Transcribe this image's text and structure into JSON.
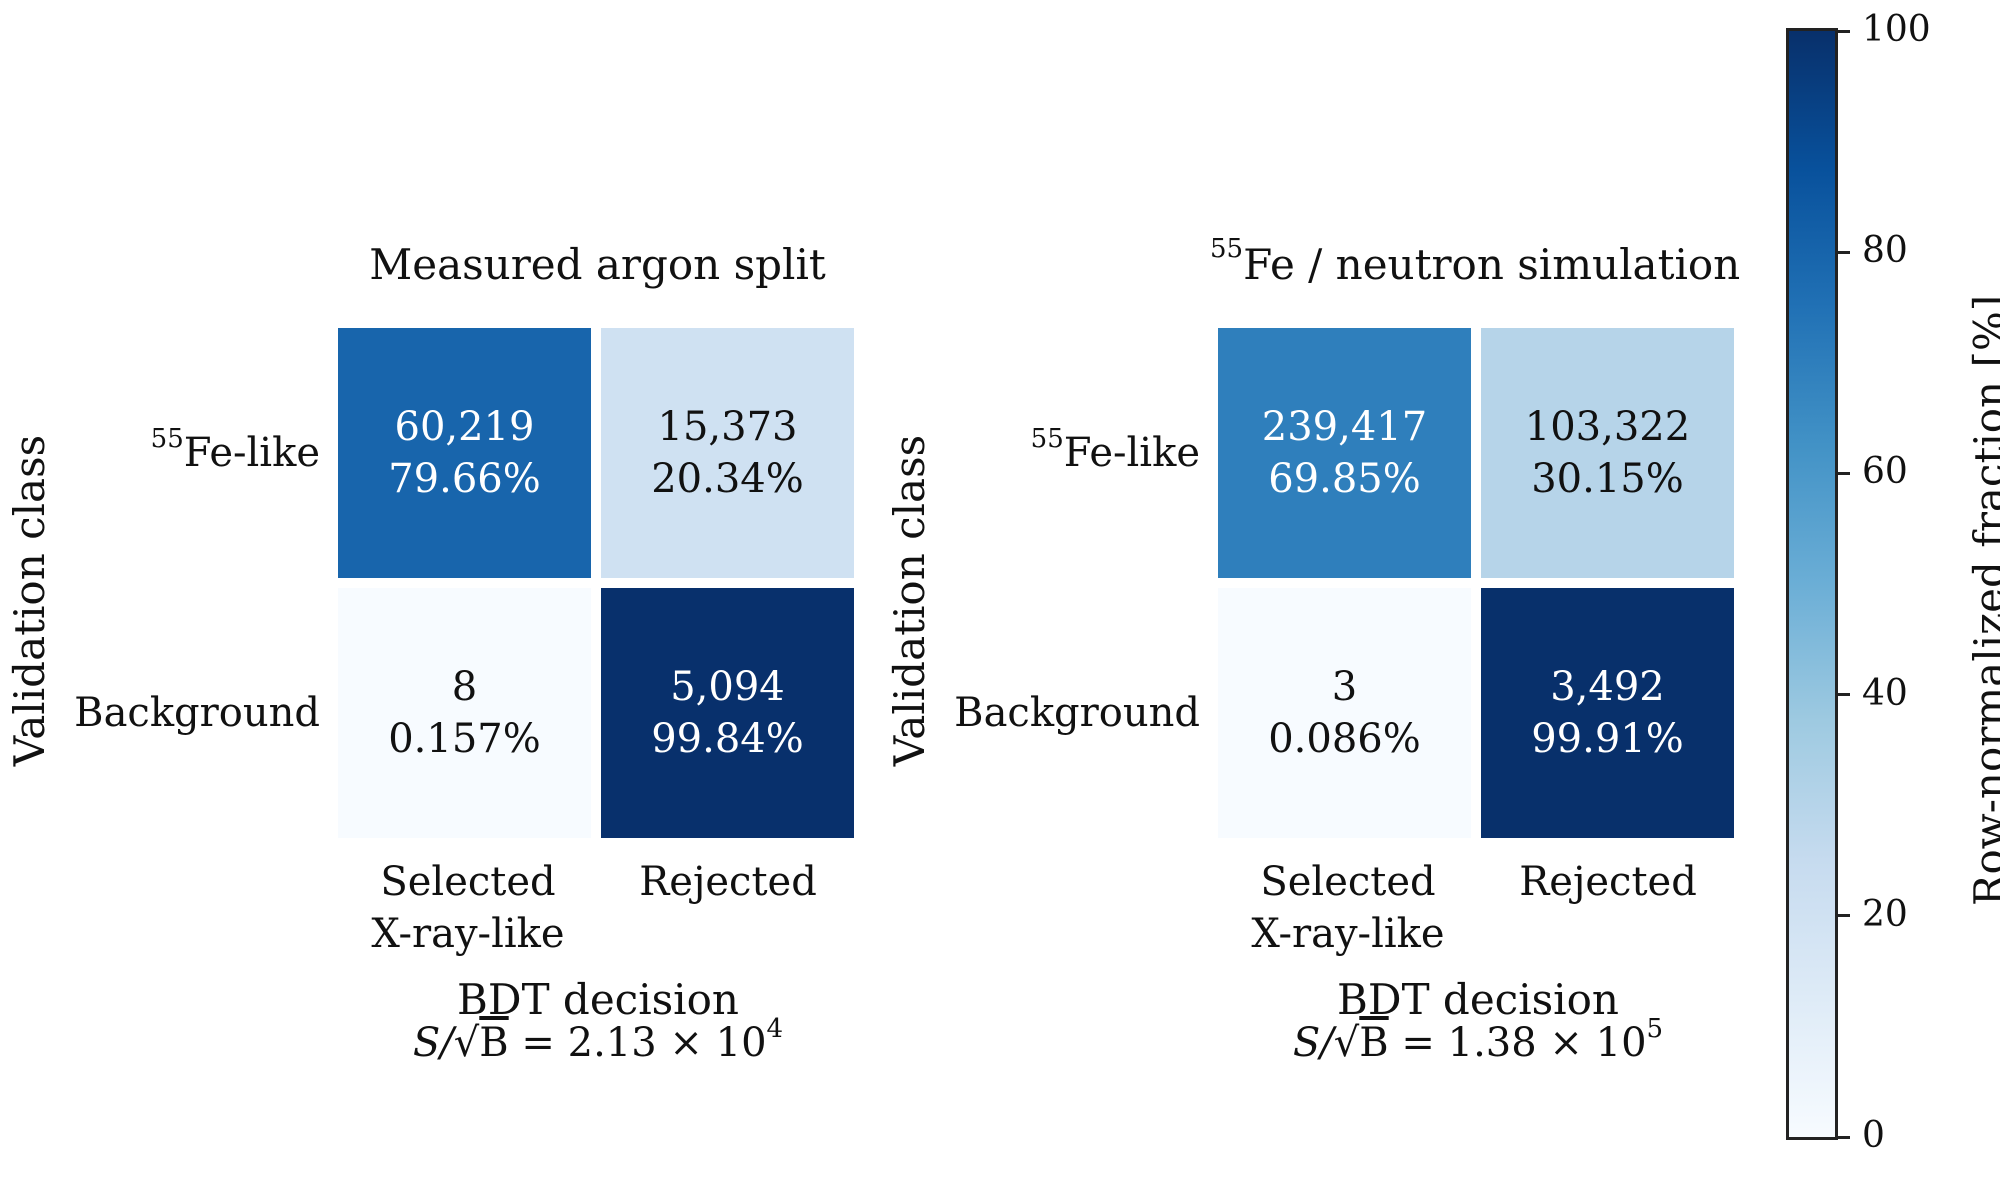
{
  "chart_data": [
    {
      "type": "heatmap",
      "title": "Measured argon split",
      "title_prefix_sup": "",
      "ylabel": "Validation class",
      "xlabel": "BDT decision",
      "metric": {
        "lhs": "S/",
        "root": "B",
        "eq": " = 2.13 × 10",
        "exp": "4"
      },
      "rows": [
        {
          "sup": "55",
          "label": "Fe-like"
        },
        {
          "sup": "",
          "label": "Background"
        }
      ],
      "cols": [
        {
          "line1": "Selected",
          "line2": "X-ray-like"
        },
        {
          "line1": "Rejected",
          "line2": ""
        }
      ],
      "cells": [
        [
          {
            "count": "60,219",
            "pct": "79.66%",
            "value": 79.66
          },
          {
            "count": "15,373",
            "pct": "20.34%",
            "value": 20.34
          }
        ],
        [
          {
            "count": "8",
            "pct": "0.157%",
            "value": 0.157
          },
          {
            "count": "5,094",
            "pct": "99.84%",
            "value": 99.84
          }
        ]
      ]
    },
    {
      "type": "heatmap",
      "title": "Fe / neutron simulation",
      "title_prefix_sup": "55",
      "ylabel": "Validation class",
      "xlabel": "BDT decision",
      "metric": {
        "lhs": "S/",
        "root": "B",
        "eq": " = 1.38 × 10",
        "exp": "5"
      },
      "rows": [
        {
          "sup": "55",
          "label": "Fe-like"
        },
        {
          "sup": "",
          "label": "Background"
        }
      ],
      "cols": [
        {
          "line1": "Selected",
          "line2": "X-ray-like"
        },
        {
          "line1": "Rejected",
          "line2": ""
        }
      ],
      "cells": [
        [
          {
            "count": "239,417",
            "pct": "69.85%",
            "value": 69.85
          },
          {
            "count": "103,322",
            "pct": "30.15%",
            "value": 30.15
          }
        ],
        [
          {
            "count": "3",
            "pct": "0.086%",
            "value": 0.086
          },
          {
            "count": "3,492",
            "pct": "99.91%",
            "value": 99.91
          }
        ]
      ]
    }
  ],
  "colorbar": {
    "label": "Row-normalized fraction [%]",
    "range": [
      0,
      100
    ],
    "ticks": [
      "0",
      "20",
      "40",
      "60",
      "80",
      "100"
    ],
    "colormap": "Blues",
    "colors": [
      "#f7fbff",
      "#deebf7",
      "#c6dbef",
      "#9ecae1",
      "#6baed6",
      "#4292c6",
      "#2171b5",
      "#08519c",
      "#08306b"
    ]
  }
}
